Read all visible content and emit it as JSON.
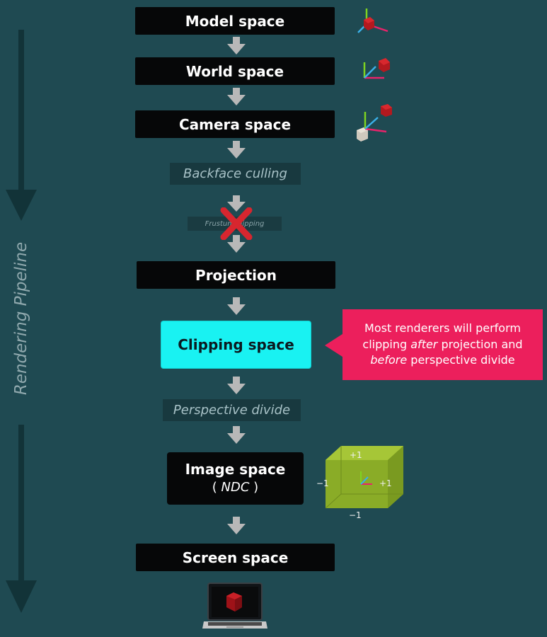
{
  "side_label": "Rendering Pipeline",
  "stages": {
    "model": "Model space",
    "world": "World space",
    "camera": "Camera space",
    "backface": "Backface culling",
    "frustum": "Frustum clipping",
    "projection": "Projection",
    "clipping": "Clipping space",
    "perspective": "Perspective divide",
    "image": "Image space",
    "image_sub": "NDC",
    "screen": "Screen space"
  },
  "callout": {
    "part1": "Most renderers will perform clipping ",
    "em1": "after",
    "part2": " projection and ",
    "em2": "before",
    "part3": " perspective divide"
  },
  "ndc_cube": {
    "top": "+1",
    "left": "−1",
    "right": "+1",
    "bottom": "−1"
  },
  "colors": {
    "background": "#1f4a52",
    "stage_box": "#060708",
    "clipping_box": "#19f2f2",
    "callout": "#ec1f5c",
    "arrow": "#b8b8b8",
    "cube": "#8fb12a"
  },
  "icons": [
    "axes-cube-icon",
    "world-axes-icon",
    "camera-axes-icon",
    "cross-icon",
    "ndc-cube-icon",
    "laptop-icon"
  ]
}
